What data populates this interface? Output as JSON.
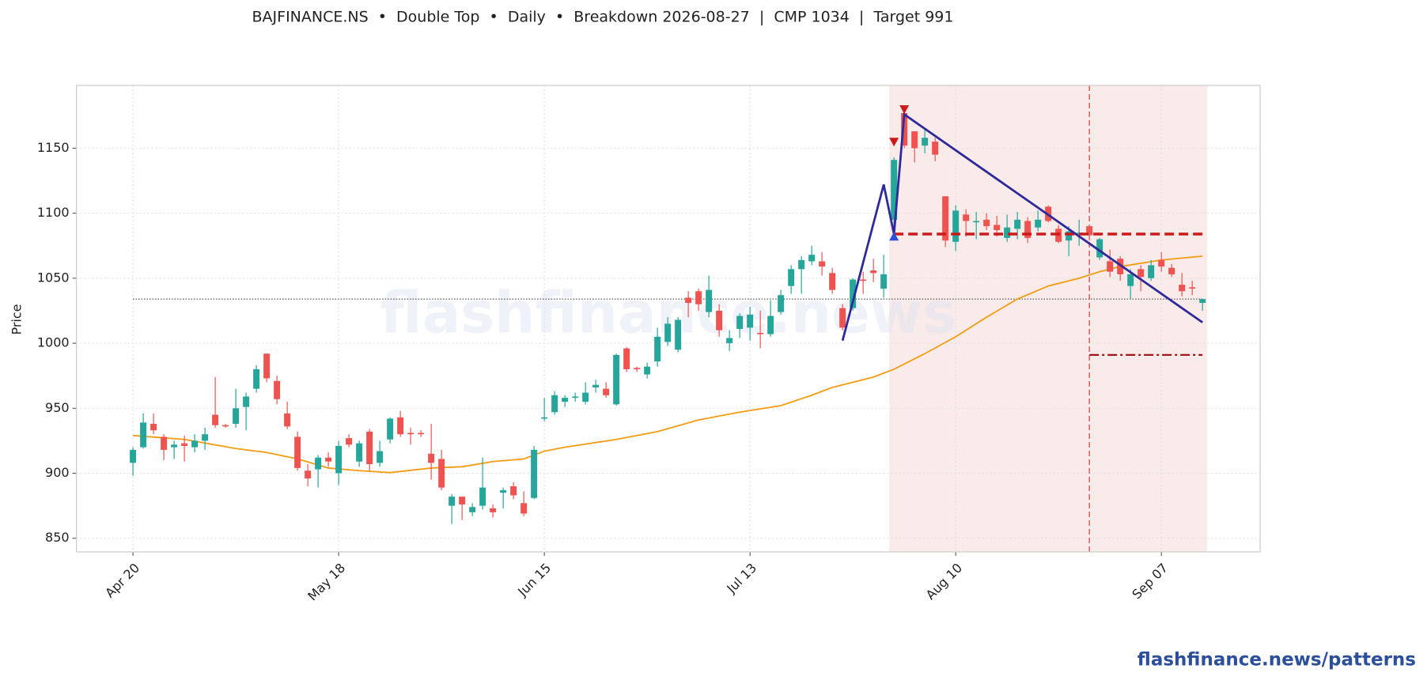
{
  "chart_data": {
    "type": "candlestick",
    "title": "BAJFINANCE.NS  •  Double Top  •  Daily  •  Breakdown 2026-08-27  |  CMP 1034  |  Target 991",
    "y_label": "Price",
    "categories": [
      "Apr 20",
      null,
      null,
      null,
      null,
      null,
      null,
      null,
      null,
      null,
      null,
      null,
      null,
      null,
      null,
      null,
      null,
      null,
      null,
      null,
      "May 18",
      null,
      null,
      null,
      null,
      null,
      null,
      null,
      null,
      null,
      null,
      null,
      null,
      null,
      null,
      null,
      null,
      null,
      null,
      null,
      "Jun 15",
      null,
      null,
      null,
      null,
      null,
      null,
      null,
      null,
      null,
      null,
      null,
      null,
      null,
      null,
      null,
      null,
      null,
      null,
      null,
      "Jul 13",
      null,
      null,
      null,
      null,
      null,
      null,
      null,
      null,
      null,
      null,
      null,
      null,
      null,
      null,
      null,
      null,
      null,
      null,
      null,
      "Aug 10",
      null,
      null,
      null,
      null,
      null,
      null,
      null,
      null,
      null,
      null,
      null,
      null,
      null,
      null,
      null,
      null,
      null,
      null,
      null,
      "Sep 07",
      null,
      null,
      null,
      null
    ],
    "open": [
      908,
      920,
      938,
      928,
      920,
      923,
      920,
      925,
      945,
      937,
      938,
      951,
      965,
      992,
      971,
      946,
      928,
      902,
      903,
      912,
      900,
      927,
      909,
      932,
      908,
      926,
      943,
      931,
      931,
      915,
      911,
      875,
      882,
      870,
      875,
      873,
      885,
      890,
      877,
      881,
      942,
      947,
      955,
      958,
      955,
      966,
      965,
      953,
      996,
      981,
      976,
      986,
      1001,
      995,
      1035,
      1040,
      1024,
      1025,
      1000,
      1011,
      1012,
      1008,
      1007,
      1024,
      1044,
      1057,
      1063,
      1063,
      1054,
      1027,
      1027,
      1049,
      1056,
      1042,
      1095,
      1177,
      1163,
      1152,
      1155,
      1113,
      1078,
      1099,
      1093,
      1095,
      1091,
      1081,
      1088,
      1094,
      1089,
      1105,
      1088,
      1079,
      1084,
      1090,
      1066,
      1063,
      1065,
      1044,
      1057,
      1050,
      1064,
      1058,
      1045,
      1043,
      1031
    ],
    "high": [
      920,
      946,
      946,
      930,
      925,
      929,
      930,
      935,
      974,
      938,
      965,
      962,
      983,
      992,
      975,
      955,
      932,
      907,
      914,
      916,
      925,
      930,
      925,
      934,
      925,
      943,
      948,
      935,
      933,
      938,
      918,
      884,
      882,
      877,
      912,
      876,
      889,
      893,
      886,
      921,
      958,
      963,
      960,
      962,
      970,
      972,
      970,
      992,
      997,
      982,
      985,
      1012,
      1020,
      1020,
      1040,
      1042,
      1052,
      1030,
      1010,
      1023,
      1028,
      1025,
      1033,
      1041,
      1060,
      1067,
      1075,
      1070,
      1058,
      1030,
      1050,
      1055,
      1065,
      1068,
      1143,
      1178,
      1163,
      1166,
      1158,
      1113,
      1106,
      1103,
      1101,
      1100,
      1098,
      1099,
      1101,
      1097,
      1102,
      1106,
      1091,
      1090,
      1095,
      1090,
      1081,
      1072,
      1067,
      1057,
      1060,
      1064,
      1070,
      1061,
      1054,
      1048,
      1034
    ],
    "low": [
      898,
      919,
      930,
      910,
      911,
      909,
      916,
      918,
      935,
      935,
      935,
      933,
      962,
      970,
      953,
      934,
      902,
      890,
      889,
      905,
      891,
      920,
      905,
      902,
      905,
      923,
      928,
      922,
      928,
      895,
      887,
      861,
      864,
      867,
      872,
      866,
      873,
      880,
      867,
      880,
      940,
      945,
      951,
      955,
      953,
      962,
      958,
      952,
      978,
      978,
      973,
      982,
      998,
      993,
      1020,
      1025,
      1020,
      1005,
      994,
      1004,
      1002,
      996,
      1005,
      1022,
      1038,
      1038,
      1060,
      1052,
      1038,
      1010,
      1025,
      1038,
      1047,
      1035,
      1087,
      1150,
      1139,
      1146,
      1140,
      1074,
      1071,
      1082,
      1080,
      1087,
      1082,
      1078,
      1080,
      1077,
      1086,
      1093,
      1077,
      1067,
      1075,
      1079,
      1064,
      1051,
      1048,
      1034,
      1040,
      1048,
      1055,
      1051,
      1036,
      1037,
      1025
    ],
    "close": [
      918,
      939,
      933,
      918,
      922,
      921,
      925,
      930,
      937,
      936,
      950,
      959,
      980,
      973,
      957,
      936,
      904,
      896,
      912,
      909,
      921,
      922,
      923,
      907,
      917,
      942,
      930,
      930,
      930,
      908,
      889,
      882,
      876,
      874,
      889,
      870,
      887,
      883,
      869,
      918,
      943,
      960,
      958,
      959,
      962,
      968,
      960,
      991,
      980,
      980,
      982,
      1005,
      1015,
      1018,
      1031,
      1030,
      1041,
      1010,
      1004,
      1021,
      1022,
      1007,
      1021,
      1037,
      1057,
      1064,
      1068,
      1059,
      1041,
      1012,
      1049,
      1048,
      1054,
      1053,
      1141,
      1152,
      1150,
      1158,
      1145,
      1079,
      1102,
      1094,
      1094,
      1090,
      1087,
      1089,
      1095,
      1081,
      1095,
      1094,
      1078,
      1086,
      1085,
      1083,
      1080,
      1055,
      1053,
      1053,
      1051,
      1060,
      1059,
      1053,
      1040,
      1042,
      1034
    ],
    "up_color": "#26a69a",
    "down_color": "#ef5350",
    "sma": {
      "color": "#f39c12",
      "x": [
        0,
        5,
        10,
        13,
        16,
        19,
        22,
        25,
        29,
        32,
        35,
        38,
        40,
        42,
        47,
        51,
        55,
        59,
        63,
        66,
        68,
        72,
        74,
        77,
        80,
        83,
        86,
        89,
        92,
        94,
        96,
        100,
        104
      ],
      "values": [
        929,
        926,
        919,
        916,
        911,
        904,
        902,
        900.5,
        904,
        905,
        909,
        911,
        917,
        920,
        926,
        932,
        941,
        947,
        952,
        960,
        966,
        974,
        980,
        992,
        1005,
        1020,
        1034,
        1044,
        1050,
        1055,
        1059,
        1064,
        1067
      ]
    },
    "pattern": {
      "color": "#2e2a9a",
      "x": [
        69,
        73,
        74,
        75,
        104
      ],
      "values": [
        1002,
        1122,
        1084,
        1176,
        1016
      ]
    },
    "peaks": {
      "color": "#cc1a1a",
      "x": [
        74,
        75
      ],
      "values": [
        1155,
        1180
      ]
    },
    "trough": {
      "color": "#2a4fd6",
      "x": [
        74
      ],
      "values": [
        1082
      ]
    },
    "neckline": {
      "value": 1084,
      "x": [
        74,
        104
      ],
      "color": "#cc1a1a"
    },
    "target": {
      "value": 991,
      "x": [
        93,
        104
      ],
      "color": "#a31515"
    },
    "cmp": {
      "value": 1034,
      "x": [
        0,
        104
      ],
      "color": "#444444"
    },
    "breakdown_x": 93,
    "shade": {
      "x": [
        74,
        104
      ],
      "color": "#f6dede"
    },
    "xlim": [
      -5.5,
      109.6
    ],
    "ylim": [
      839.5,
      1198.3
    ],
    "yticks": [
      850,
      900,
      950,
      1000,
      1050,
      1100,
      1150
    ],
    "grid": true
  },
  "watermark": "flashfinance.news",
  "footer": "flashfinance.news/patterns"
}
